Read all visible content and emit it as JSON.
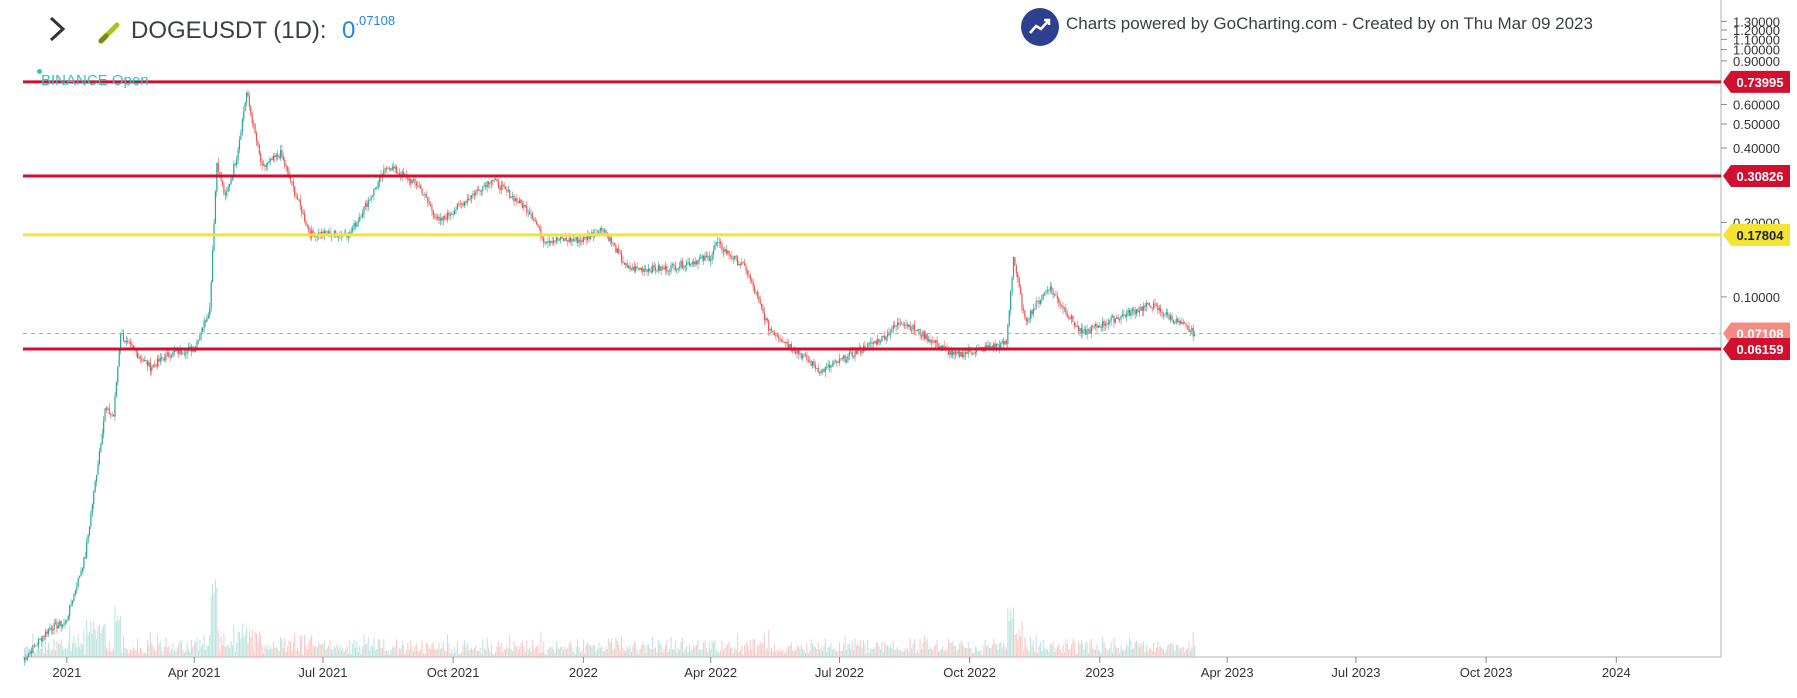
{
  "header": {
    "symbol_text": "DOGEUSDT (1D):",
    "price_main": "0",
    "price_sup": ".07108",
    "brand_text": "Charts powered by GoCharting.com - Created by  on Thu Mar 09 2023",
    "exchange_text": "BINANCE Open",
    "icons": [
      "chevron-right-icon",
      "pencil-icon",
      "trend-chart-icon"
    ]
  },
  "colors": {
    "up": "#26a69a",
    "down": "#ef5350",
    "red_line": "#d10f2f",
    "yellow_line": "#f2e335",
    "current_price": "#f28b82",
    "exchange": "#2bc6c4",
    "price_text": "#1e88e5"
  },
  "chart_data": {
    "type": "candlestick",
    "scale": "log",
    "y_tick_labels": [
      "1.30000",
      "1.20000",
      "1.10000",
      "1.00000",
      "0.90000",
      "0.60000",
      "0.50000",
      "0.40000",
      "0.20000",
      "0.10000"
    ],
    "x_tick_labels": [
      "2021",
      "Apr 2021",
      "Jul 2021",
      "Oct 2021",
      "2022",
      "Apr 2022",
      "Jul 2022",
      "Oct 2022",
      "2023",
      "Apr 2023",
      "Jul 2023",
      "Oct 2023",
      "2024"
    ],
    "x_range": [
      "2020-12-01",
      "2024-03-15"
    ],
    "y_range": [
      0.0035,
      1.5
    ],
    "levels": [
      {
        "label": "0.73995",
        "value": 0.73995,
        "color": "red"
      },
      {
        "label": "0.30826",
        "value": 0.30826,
        "color": "red"
      },
      {
        "label": "0.17804",
        "value": 0.17804,
        "color": "yellow"
      },
      {
        "label": "0.07108",
        "value": 0.07108,
        "color": "current"
      },
      {
        "label": "0.06159",
        "value": 0.06159,
        "color": "red"
      }
    ],
    "price_path": [
      [
        "2020-12-01",
        0.0034
      ],
      [
        "2020-12-20",
        0.0046
      ],
      [
        "2020-12-31",
        0.0048
      ],
      [
        "2021-01-14",
        0.009
      ],
      [
        "2021-01-28",
        0.035
      ],
      [
        "2021-02-03",
        0.033
      ],
      [
        "2021-02-08",
        0.072
      ],
      [
        "2021-02-12",
        0.065
      ],
      [
        "2021-03-01",
        0.052
      ],
      [
        "2021-03-15",
        0.059
      ],
      [
        "2021-04-01",
        0.062
      ],
      [
        "2021-04-12",
        0.09
      ],
      [
        "2021-04-17",
        0.35
      ],
      [
        "2021-04-23",
        0.25
      ],
      [
        "2021-05-01",
        0.37
      ],
      [
        "2021-05-08",
        0.67
      ],
      [
        "2021-05-19",
        0.33
      ],
      [
        "2021-06-01",
        0.38
      ],
      [
        "2021-06-22",
        0.18
      ],
      [
        "2021-07-20",
        0.18
      ],
      [
        "2021-08-16",
        0.34
      ],
      [
        "2021-09-07",
        0.28
      ],
      [
        "2021-09-21",
        0.2
      ],
      [
        "2021-10-28",
        0.3
      ],
      [
        "2021-11-25",
        0.22
      ],
      [
        "2021-12-04",
        0.17
      ],
      [
        "2021-12-31",
        0.17
      ],
      [
        "2022-01-15",
        0.19
      ],
      [
        "2022-02-01",
        0.13
      ],
      [
        "2022-02-28",
        0.13
      ],
      [
        "2022-04-01",
        0.145
      ],
      [
        "2022-04-05",
        0.165
      ],
      [
        "2022-04-26",
        0.13
      ],
      [
        "2022-05-12",
        0.075
      ],
      [
        "2022-06-18",
        0.05
      ],
      [
        "2022-07-31",
        0.068
      ],
      [
        "2022-08-14",
        0.08
      ],
      [
        "2022-09-20",
        0.058
      ],
      [
        "2022-10-27",
        0.065
      ],
      [
        "2022-11-01",
        0.145
      ],
      [
        "2022-11-09",
        0.08
      ],
      [
        "2022-11-26",
        0.11
      ],
      [
        "2022-12-19",
        0.071
      ],
      [
        "2023-01-14",
        0.083
      ],
      [
        "2023-02-06",
        0.093
      ],
      [
        "2023-03-09",
        0.0711
      ]
    ]
  }
}
